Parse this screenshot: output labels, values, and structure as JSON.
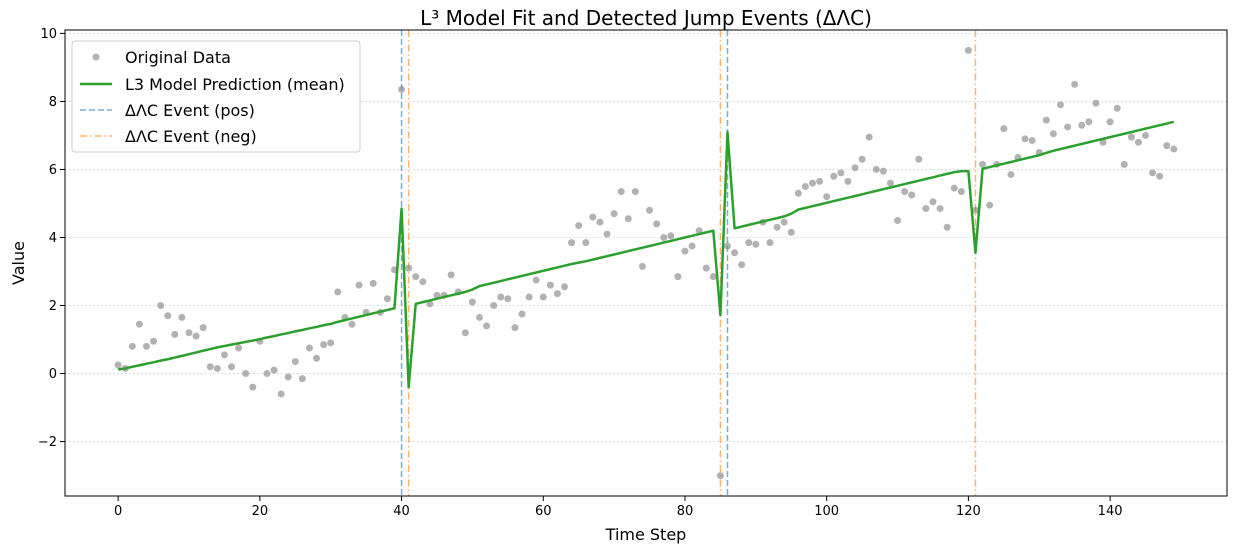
{
  "chart_data": {
    "type": "line",
    "title": "L³ Model Fit and Detected Jump Events (ΔΛC)",
    "xlabel": "Time Step",
    "ylabel": "Value",
    "xlim": [
      -7.5,
      156.5
    ],
    "ylim": [
      -3.6,
      10.1
    ],
    "xticks": [
      0,
      20,
      40,
      60,
      80,
      100,
      120,
      140
    ],
    "yticks": [
      -2,
      0,
      2,
      4,
      6,
      8,
      10
    ],
    "grid": "horizontal dotted",
    "legend_position": "top-left",
    "legend": [
      {
        "key": "scatter",
        "label": "Original Data"
      },
      {
        "key": "line",
        "label": "L3 Model Prediction (mean)"
      },
      {
        "key": "pos",
        "label": "ΔΛC Event (pos)"
      },
      {
        "key": "neg",
        "label": "ΔΛC Event (neg)"
      }
    ],
    "colors": {
      "scatter": "#7f7f7f",
      "line": "#2ca02c",
      "pos": "#1f77b4",
      "neg": "#ff7f0e",
      "grid": "#cccccc"
    },
    "events_pos": [
      40,
      86
    ],
    "events_neg": [
      41,
      85,
      121
    ],
    "series": [
      {
        "name": "Original Data",
        "kind": "scatter",
        "x": [
          0,
          1,
          2,
          3,
          4,
          5,
          6,
          7,
          8,
          9,
          10,
          11,
          12,
          13,
          14,
          15,
          16,
          17,
          18,
          19,
          20,
          21,
          22,
          23,
          24,
          25,
          26,
          27,
          28,
          29,
          30,
          31,
          32,
          33,
          34,
          35,
          36,
          37,
          38,
          39,
          40,
          41,
          42,
          43,
          44,
          45,
          46,
          47,
          48,
          49,
          50,
          51,
          52,
          53,
          54,
          55,
          56,
          57,
          58,
          59,
          60,
          61,
          62,
          63,
          64,
          65,
          66,
          67,
          68,
          69,
          70,
          71,
          72,
          73,
          74,
          75,
          76,
          77,
          78,
          79,
          80,
          81,
          82,
          83,
          84,
          85,
          86,
          87,
          88,
          89,
          90,
          91,
          92,
          93,
          94,
          95,
          96,
          97,
          98,
          99,
          100,
          101,
          102,
          103,
          104,
          105,
          106,
          107,
          108,
          109,
          110,
          111,
          112,
          113,
          114,
          115,
          116,
          117,
          118,
          119,
          120,
          121,
          122,
          123,
          124,
          125,
          126,
          127,
          128,
          129,
          130,
          131,
          132,
          133,
          134,
          135,
          136,
          137,
          138,
          139,
          140,
          141,
          142,
          143,
          144,
          145,
          146,
          147,
          148,
          149
        ],
        "y": [
          0.25,
          0.15,
          0.8,
          1.45,
          0.8,
          0.95,
          2.0,
          1.7,
          1.15,
          1.65,
          1.2,
          1.1,
          1.35,
          0.2,
          0.15,
          0.55,
          0.2,
          0.75,
          0.0,
          -0.4,
          0.95,
          0.0,
          0.1,
          -0.6,
          -0.1,
          0.35,
          -0.15,
          0.75,
          0.45,
          0.85,
          0.9,
          2.4,
          1.65,
          1.45,
          2.6,
          1.8,
          2.65,
          1.8,
          2.2,
          3.05,
          8.35,
          3.1,
          2.85,
          2.7,
          2.05,
          2.3,
          2.3,
          2.9,
          2.4,
          1.2,
          2.1,
          1.65,
          1.4,
          2.0,
          2.25,
          2.2,
          1.35,
          1.75,
          2.25,
          2.75,
          2.25,
          2.6,
          2.35,
          2.55,
          3.85,
          4.35,
          3.85,
          4.6,
          4.45,
          4.1,
          4.7,
          5.35,
          4.55,
          5.35,
          3.15,
          4.8,
          4.4,
          4.0,
          4.05,
          2.85,
          3.6,
          3.75,
          4.2,
          3.1,
          2.85,
          -3.0,
          3.75,
          3.55,
          3.2,
          3.85,
          3.8,
          4.45,
          3.85,
          4.3,
          4.45,
          4.15,
          5.3,
          5.5,
          5.6,
          5.65,
          5.2,
          5.8,
          5.9,
          5.65,
          6.05,
          6.3,
          6.95,
          6.0,
          5.95,
          5.6,
          4.5,
          5.35,
          5.25,
          6.3,
          4.85,
          5.05,
          4.85,
          4.3,
          5.45,
          5.35,
          9.5,
          4.8,
          6.15,
          4.95,
          6.15,
          7.2,
          5.85,
          6.35,
          6.9,
          6.85,
          6.5,
          7.45,
          7.05,
          7.9,
          7.25,
          8.5,
          7.3,
          7.4,
          7.95,
          6.8,
          7.4,
          7.8,
          6.15,
          6.95,
          6.8,
          7.0,
          5.9,
          5.8,
          6.7,
          6.6
        ]
      },
      {
        "name": "L3 Model Prediction (mean)",
        "kind": "line",
        "x": [
          0,
          1,
          2,
          3,
          4,
          5,
          6,
          7,
          8,
          9,
          10,
          11,
          12,
          13,
          14,
          15,
          16,
          17,
          18,
          19,
          20,
          21,
          22,
          23,
          24,
          25,
          26,
          27,
          28,
          29,
          30,
          31,
          32,
          33,
          34,
          35,
          36,
          37,
          38,
          39,
          40,
          41,
          42,
          43,
          44,
          45,
          46,
          47,
          48,
          49,
          50,
          51,
          52,
          53,
          54,
          55,
          56,
          57,
          58,
          59,
          60,
          61,
          62,
          63,
          64,
          65,
          66,
          67,
          68,
          69,
          70,
          71,
          72,
          73,
          74,
          75,
          76,
          77,
          78,
          79,
          80,
          81,
          82,
          83,
          84,
          85,
          86,
          87,
          88,
          89,
          90,
          91,
          92,
          93,
          94,
          95,
          96,
          97,
          98,
          99,
          100,
          101,
          102,
          103,
          104,
          105,
          106,
          107,
          108,
          109,
          110,
          111,
          112,
          113,
          114,
          115,
          116,
          117,
          118,
          119,
          120,
          121,
          122,
          123,
          124,
          125,
          126,
          127,
          128,
          129,
          130,
          131,
          132,
          133,
          134,
          135,
          136,
          137,
          138,
          139,
          140,
          141,
          142,
          143,
          144,
          145,
          146,
          147,
          148,
          149
        ],
        "y": [
          0.12,
          0.15,
          0.2,
          0.24,
          0.29,
          0.33,
          0.38,
          0.42,
          0.47,
          0.52,
          0.57,
          0.62,
          0.67,
          0.72,
          0.77,
          0.81,
          0.85,
          0.89,
          0.93,
          0.97,
          1.01,
          1.06,
          1.1,
          1.15,
          1.19,
          1.24,
          1.28,
          1.33,
          1.37,
          1.42,
          1.46,
          1.52,
          1.57,
          1.62,
          1.67,
          1.72,
          1.77,
          1.82,
          1.87,
          1.92,
          4.85,
          -0.4,
          2.05,
          2.1,
          2.15,
          2.2,
          2.25,
          2.3,
          2.35,
          2.4,
          2.47,
          2.57,
          2.62,
          2.67,
          2.72,
          2.77,
          2.82,
          2.87,
          2.92,
          2.97,
          3.02,
          3.07,
          3.12,
          3.17,
          3.22,
          3.26,
          3.3,
          3.35,
          3.4,
          3.45,
          3.5,
          3.55,
          3.6,
          3.65,
          3.7,
          3.75,
          3.8,
          3.85,
          3.9,
          3.95,
          4.0,
          4.05,
          4.1,
          4.15,
          4.2,
          1.72,
          7.1,
          4.27,
          4.32,
          4.37,
          4.42,
          4.47,
          4.52,
          4.57,
          4.62,
          4.7,
          4.82,
          4.87,
          4.92,
          4.97,
          5.02,
          5.07,
          5.12,
          5.17,
          5.22,
          5.27,
          5.32,
          5.37,
          5.42,
          5.47,
          5.52,
          5.57,
          5.62,
          5.67,
          5.72,
          5.77,
          5.82,
          5.87,
          5.92,
          5.95,
          5.95,
          3.55,
          6.02,
          6.07,
          6.12,
          6.17,
          6.22,
          6.27,
          6.32,
          6.37,
          6.42,
          6.49,
          6.55,
          6.6,
          6.65,
          6.7,
          6.75,
          6.8,
          6.85,
          6.9,
          6.95,
          7.0,
          7.05,
          7.1,
          7.15,
          7.2,
          7.25,
          7.3,
          7.35,
          7.4
        ]
      }
    ]
  }
}
